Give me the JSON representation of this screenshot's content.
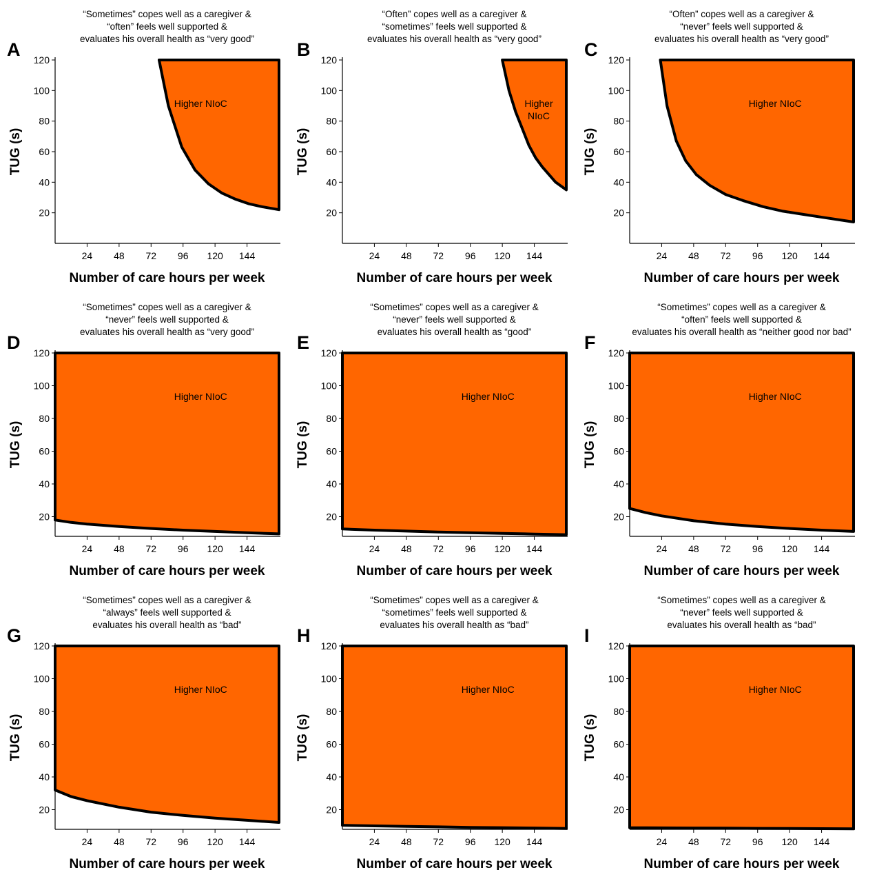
{
  "chart_data": [
    {
      "type": "area",
      "panel_letter": "A",
      "title_lines": [
        "“Sometimes” copes well as a caregiver &",
        "“often” feels well supported &",
        "evaluates his overall health as “very good”"
      ],
      "xlabel": "Number of care hours per week",
      "ylabel": "TUG (s)",
      "xlim": [
        0,
        168
      ],
      "ylim": [
        0,
        120
      ],
      "xticks": [
        24,
        48,
        72,
        96,
        120,
        144
      ],
      "yticks": [
        20,
        40,
        60,
        80,
        100,
        120
      ],
      "region_label": [
        "Higher NIoC"
      ],
      "boundary": {
        "x": [
          78,
          85,
          95,
          105,
          115,
          125,
          135,
          145,
          155,
          168
        ],
        "y": [
          120,
          90,
          63,
          48,
          39,
          33,
          29,
          26,
          24,
          22
        ]
      },
      "grid": false
    },
    {
      "type": "area",
      "panel_letter": "B",
      "title_lines": [
        "“Often” copes well as a caregiver &",
        "“sometimes” feels well supported &",
        "evaluates his overall health as “very good”"
      ],
      "xlabel": "Number of care hours per week",
      "ylabel": "TUG (s)",
      "xlim": [
        0,
        168
      ],
      "ylim": [
        0,
        120
      ],
      "xticks": [
        24,
        48,
        72,
        96,
        120,
        144
      ],
      "yticks": [
        20,
        40,
        60,
        80,
        100,
        120
      ],
      "region_label": [
        "Higher",
        "NIoC"
      ],
      "boundary": {
        "x": [
          120,
          125,
          130,
          135,
          140,
          145,
          150,
          155,
          160,
          168
        ],
        "y": [
          120,
          100,
          86,
          75,
          64,
          56,
          50,
          45,
          40,
          35
        ]
      },
      "grid": false
    },
    {
      "type": "area",
      "panel_letter": "C",
      "title_lines": [
        "“Often” copes well as a caregiver &",
        "“never” feels well supported &",
        "evaluates his overall health as “very good”"
      ],
      "xlabel": "Number of care hours per week",
      "ylabel": "TUG (s)",
      "xlim": [
        0,
        168
      ],
      "ylim": [
        0,
        120
      ],
      "xticks": [
        24,
        48,
        72,
        96,
        120,
        144
      ],
      "yticks": [
        20,
        40,
        60,
        80,
        100,
        120
      ],
      "region_label": [
        "Higher NIoC"
      ],
      "boundary": {
        "x": [
          23,
          28,
          35,
          42,
          50,
          60,
          72,
          85,
          100,
          115,
          130,
          145,
          168
        ],
        "y": [
          120,
          90,
          67,
          54,
          45,
          38,
          32,
          28,
          24,
          21,
          19,
          17,
          14
        ]
      },
      "grid": false
    },
    {
      "type": "area",
      "panel_letter": "D",
      "title_lines": [
        "“Sometimes” copes well as a caregiver &",
        "“never” feels well supported &",
        "evaluates his overall health as “very good”"
      ],
      "xlabel": "Number of care hours per week",
      "ylabel": "TUG (s)",
      "xlim": [
        0,
        168
      ],
      "ylim": [
        8,
        120
      ],
      "xticks": [
        24,
        48,
        72,
        96,
        120,
        144
      ],
      "yticks": [
        20,
        40,
        60,
        80,
        100,
        120
      ],
      "region_label": [
        "Higher NIoC"
      ],
      "boundary": {
        "x": [
          0,
          12,
          24,
          48,
          72,
          96,
          120,
          144,
          168
        ],
        "y": [
          18,
          16.5,
          15.5,
          14,
          12.8,
          11.8,
          11,
          10.2,
          9.5
        ]
      },
      "grid": false
    },
    {
      "type": "area",
      "panel_letter": "E",
      "title_lines": [
        "“Sometimes” copes well as a caregiver &",
        "“never” feels well supported &",
        "evaluates his overall health as “good”"
      ],
      "xlabel": "Number of care hours per week",
      "ylabel": "TUG (s)",
      "xlim": [
        0,
        168
      ],
      "ylim": [
        8,
        120
      ],
      "xticks": [
        24,
        48,
        72,
        96,
        120,
        144
      ],
      "yticks": [
        20,
        40,
        60,
        80,
        100,
        120
      ],
      "region_label": [
        "Higher NIoC"
      ],
      "boundary": {
        "x": [
          0,
          24,
          48,
          72,
          96,
          120,
          144,
          168
        ],
        "y": [
          12.5,
          11.8,
          11.2,
          10.6,
          10.2,
          9.8,
          9.4,
          9
        ]
      },
      "grid": false
    },
    {
      "type": "area",
      "panel_letter": "F",
      "title_lines": [
        "“Sometimes” copes well as a caregiver &",
        "“often” feels well supported &",
        "evaluates his overall health as “neither good nor bad”"
      ],
      "xlabel": "Number of care hours per week",
      "ylabel": "TUG (s)",
      "xlim": [
        0,
        168
      ],
      "ylim": [
        8,
        120
      ],
      "xticks": [
        24,
        48,
        72,
        96,
        120,
        144
      ],
      "yticks": [
        20,
        40,
        60,
        80,
        100,
        120
      ],
      "region_label": [
        "Higher NIoC"
      ],
      "boundary": {
        "x": [
          0,
          12,
          24,
          48,
          72,
          96,
          120,
          144,
          168
        ],
        "y": [
          25,
          22.5,
          20.5,
          17.5,
          15.5,
          14,
          12.8,
          11.8,
          11
        ]
      },
      "grid": false
    },
    {
      "type": "area",
      "panel_letter": "G",
      "title_lines": [
        "“Sometimes” copes well as a caregiver &",
        "“always” feels well supported &",
        "evaluates his overall health as “bad”"
      ],
      "xlabel": "Number of care hours per week",
      "ylabel": "TUG (s)",
      "xlim": [
        0,
        168
      ],
      "ylim": [
        8,
        120
      ],
      "xticks": [
        24,
        48,
        72,
        96,
        120,
        144
      ],
      "yticks": [
        20,
        40,
        60,
        80,
        100,
        120
      ],
      "region_label": [
        "Higher NIoC"
      ],
      "boundary": {
        "x": [
          0,
          12,
          24,
          48,
          72,
          96,
          120,
          144,
          168
        ],
        "y": [
          32,
          28,
          25.5,
          21.5,
          18.5,
          16.5,
          14.8,
          13.5,
          12.2
        ]
      },
      "grid": false
    },
    {
      "type": "area",
      "panel_letter": "H",
      "title_lines": [
        "“Sometimes” copes well as a caregiver &",
        "“sometimes” feels well supported &",
        "evaluates his overall health as “bad”"
      ],
      "xlabel": "Number of care hours per week",
      "ylabel": "TUG (s)",
      "xlim": [
        0,
        168
      ],
      "ylim": [
        8,
        120
      ],
      "xticks": [
        24,
        48,
        72,
        96,
        120,
        144
      ],
      "yticks": [
        20,
        40,
        60,
        80,
        100,
        120
      ],
      "region_label": [
        "Higher NIoC"
      ],
      "boundary": {
        "x": [
          0,
          24,
          48,
          72,
          96,
          120,
          144,
          168
        ],
        "y": [
          10.5,
          10.1,
          9.8,
          9.5,
          9.2,
          9,
          8.8,
          8.5
        ]
      },
      "grid": false
    },
    {
      "type": "area",
      "panel_letter": "I",
      "title_lines": [
        "“Sometimes” copes well as a caregiver &",
        "“never” feels well supported &",
        "evaluates his overall health as “bad”"
      ],
      "xlabel": "Number of care hours per week",
      "ylabel": "TUG (s)",
      "xlim": [
        0,
        168
      ],
      "ylim": [
        8,
        120
      ],
      "xticks": [
        24,
        48,
        72,
        96,
        120,
        144
      ],
      "yticks": [
        20,
        40,
        60,
        80,
        100,
        120
      ],
      "region_label": [
        "Higher NIoC"
      ],
      "boundary": {
        "x": [
          0,
          24,
          48,
          72,
          96,
          120,
          144,
          168
        ],
        "y": [
          9,
          8.9,
          8.8,
          8.7,
          8.6,
          8.5,
          8.4,
          8.3
        ]
      },
      "grid": false
    }
  ],
  "colors": {
    "region_fill": "#ff6600",
    "boundary": "#000000",
    "background": "#ffffff"
  }
}
